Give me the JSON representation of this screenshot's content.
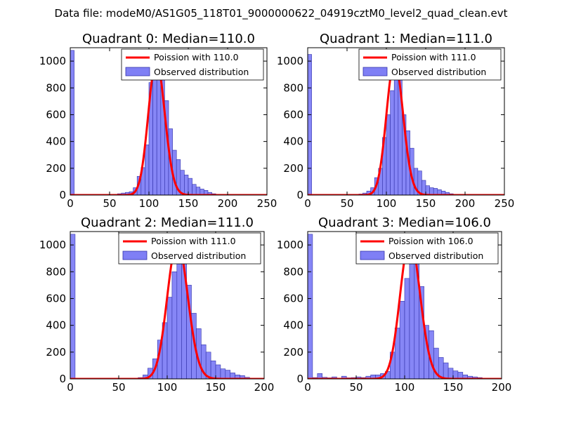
{
  "figure_title": "Data file: modeM0/AS1G05_118T01_9000000622_04919cztM0_level2_quad_clean.evt",
  "colors": {
    "hist_fill": "#7f7ff5",
    "hist_edge": "#3333aa",
    "fit_line": "#ff0000"
  },
  "chart_data": [
    {
      "type": "bar",
      "title": "Quadrant 0: Median=110.0",
      "xlim": [
        0,
        250
      ],
      "ylim": [
        0,
        1100
      ],
      "xticks": [
        0,
        50,
        100,
        150,
        200,
        250
      ],
      "yticks": [
        0,
        200,
        400,
        600,
        800,
        1000
      ],
      "legend": {
        "fit": "Poission with 110.0",
        "hist": "Observed distribution",
        "position": "top-right"
      },
      "median": 110.0,
      "bin_width": 5,
      "bin_starts": [
        0,
        55,
        60,
        65,
        70,
        75,
        80,
        85,
        90,
        95,
        100,
        105,
        110,
        115,
        120,
        125,
        130,
        135,
        140,
        145,
        150,
        155,
        160,
        165,
        170,
        175,
        180,
        185,
        190,
        195,
        200,
        205,
        210
      ],
      "counts": [
        1080,
        2,
        10,
        15,
        20,
        25,
        55,
        140,
        205,
        375,
        840,
        990,
        1000,
        870,
        705,
        495,
        335,
        265,
        185,
        150,
        125,
        80,
        60,
        45,
        35,
        20,
        10,
        6,
        4,
        3,
        2,
        1,
        1
      ]
    },
    {
      "type": "bar",
      "title": "Quadrant 1: Median=111.0",
      "xlim": [
        0,
        250
      ],
      "ylim": [
        0,
        1100
      ],
      "xticks": [
        0,
        50,
        100,
        150,
        200,
        250
      ],
      "yticks": [
        0,
        200,
        400,
        600,
        800,
        1000
      ],
      "legend": {
        "fit": "Poission with 111.0",
        "hist": "Observed distribution",
        "position": "top-right"
      },
      "median": 111.0,
      "bin_width": 5,
      "bin_starts": [
        0,
        60,
        65,
        70,
        75,
        80,
        85,
        90,
        95,
        100,
        105,
        110,
        115,
        120,
        125,
        130,
        135,
        140,
        145,
        150,
        155,
        160,
        165,
        170,
        175,
        180,
        185,
        190,
        195,
        200,
        205
      ],
      "counts": [
        1050,
        3,
        8,
        15,
        30,
        55,
        130,
        200,
        430,
        600,
        780,
        1000,
        900,
        600,
        480,
        350,
        200,
        180,
        110,
        70,
        55,
        50,
        40,
        30,
        20,
        10,
        6,
        4,
        3,
        2,
        1
      ]
    },
    {
      "type": "bar",
      "title": "Quadrant 2: Median=111.0",
      "xlim": [
        0,
        200
      ],
      "ylim": [
        0,
        1100
      ],
      "xticks": [
        0,
        50,
        100,
        150,
        200
      ],
      "yticks": [
        0,
        200,
        400,
        600,
        800,
        1000
      ],
      "legend": {
        "fit": "Poission with 111.0",
        "hist": "Observed distribution",
        "position": "top-right"
      },
      "median": 111.0,
      "bin_width": 5,
      "bin_starts": [
        0,
        60,
        65,
        70,
        75,
        80,
        85,
        90,
        95,
        100,
        105,
        110,
        115,
        120,
        125,
        130,
        135,
        140,
        145,
        150,
        155,
        160,
        165,
        170,
        175,
        180,
        185,
        190,
        195
      ],
      "counts": [
        1080,
        2,
        5,
        10,
        30,
        80,
        150,
        290,
        420,
        610,
        800,
        1020,
        990,
        700,
        490,
        375,
        255,
        200,
        135,
        105,
        75,
        65,
        45,
        30,
        25,
        12,
        6,
        4,
        2
      ]
    },
    {
      "type": "bar",
      "title": "Quadrant 3: Median=106.0",
      "xlim": [
        0,
        200
      ],
      "ylim": [
        0,
        1100
      ],
      "xticks": [
        0,
        50,
        100,
        150,
        200
      ],
      "yticks": [
        0,
        200,
        400,
        600,
        800,
        1000
      ],
      "legend": {
        "fit": "Poission with 106.0",
        "hist": "Observed distribution",
        "position": "top-right"
      },
      "median": 106.0,
      "bin_width": 5,
      "bin_starts": [
        0,
        5,
        10,
        15,
        20,
        25,
        30,
        35,
        40,
        45,
        50,
        55,
        60,
        65,
        70,
        75,
        80,
        85,
        90,
        95,
        100,
        105,
        110,
        115,
        120,
        125,
        130,
        135,
        140,
        145,
        150,
        155,
        160,
        165,
        170,
        175,
        180,
        185,
        190,
        195
      ],
      "counts": [
        1080,
        10,
        40,
        12,
        8,
        15,
        5,
        20,
        8,
        10,
        15,
        10,
        20,
        30,
        30,
        40,
        55,
        200,
        380,
        580,
        750,
        1040,
        920,
        690,
        400,
        360,
        230,
        160,
        120,
        80,
        60,
        50,
        30,
        20,
        15,
        10,
        6,
        4,
        2,
        1
      ]
    }
  ]
}
